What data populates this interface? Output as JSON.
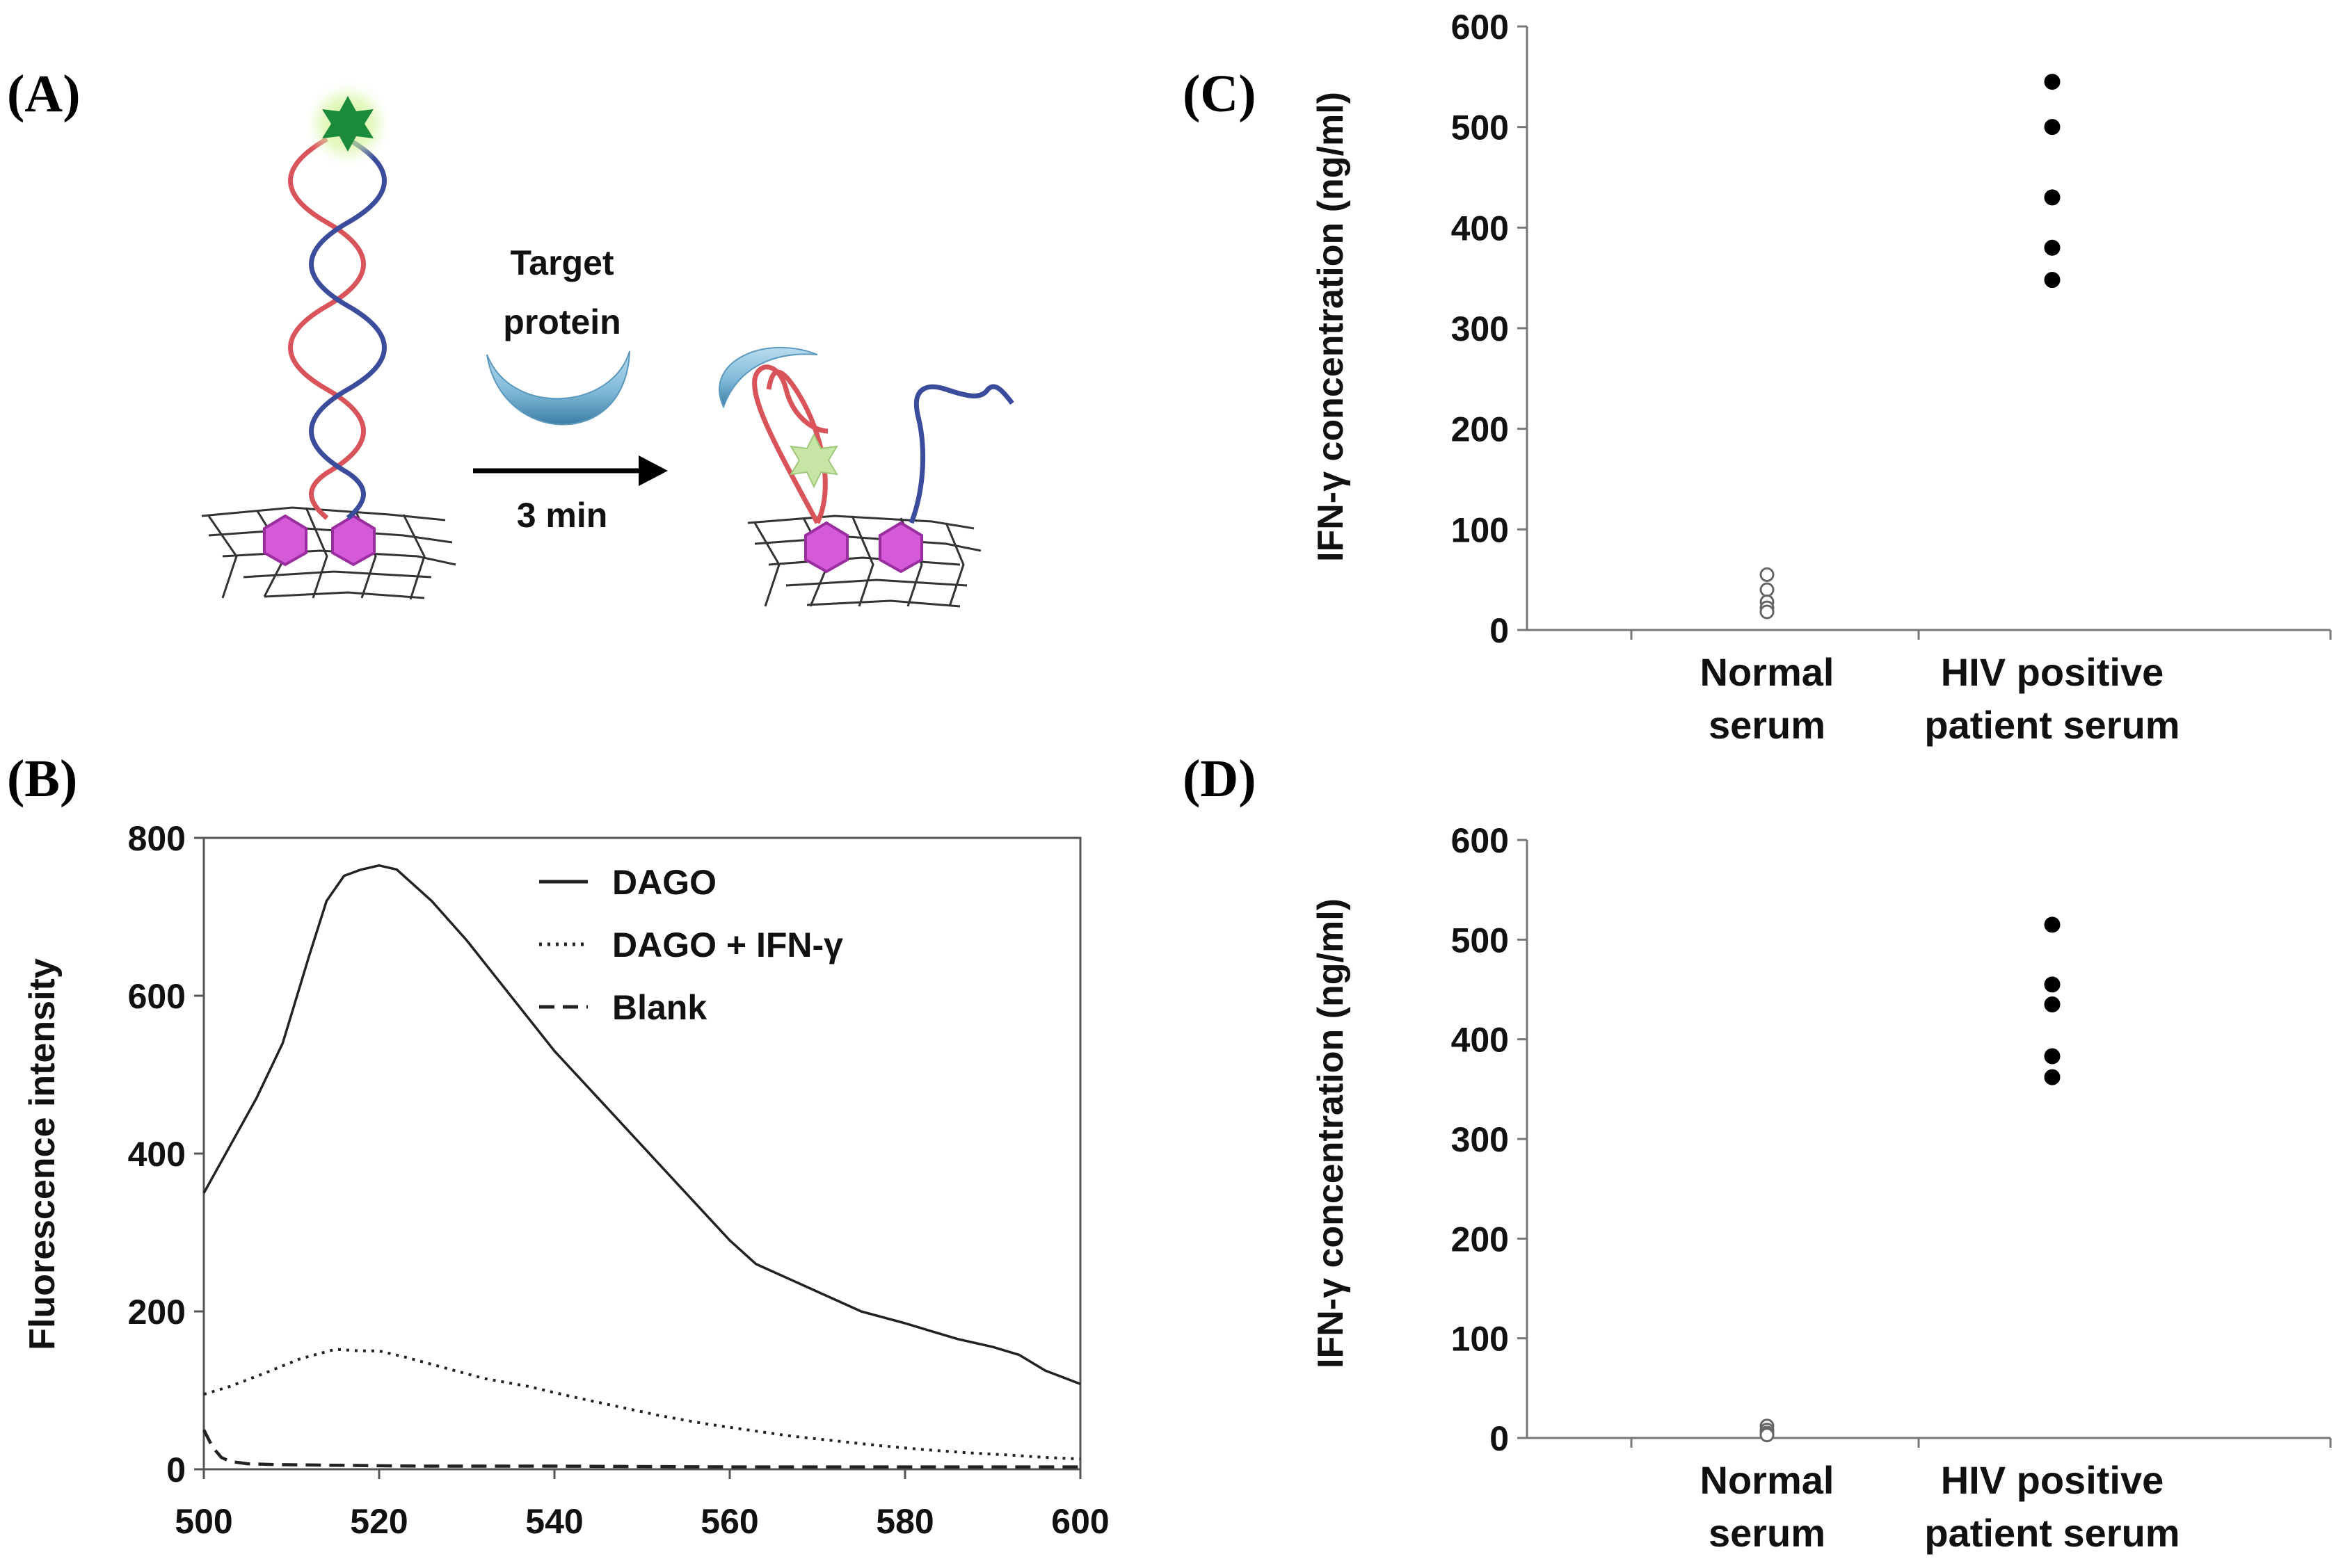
{
  "panels": {
    "a": {
      "label": "(A)",
      "arrow_label_top_line1": "Target",
      "arrow_label_top_line2": "protein",
      "arrow_label_bottom": "3 min"
    },
    "b": {
      "label": "(B)"
    },
    "c": {
      "label": "(C)"
    },
    "d": {
      "label": "(D)"
    }
  },
  "colors": {
    "red_strand": "#d9535a",
    "blue_strand": "#3a4c9b",
    "green_star": "#1b8a3a",
    "pale_star": "#c7e6a6",
    "hexagon": "#d55ad8",
    "protein": "#7fb9d8"
  },
  "chart_data": [
    {
      "id": "B",
      "type": "line",
      "title": "",
      "xlabel": "",
      "ylabel": "Fluorescence intensity",
      "xlim": [
        500,
        600
      ],
      "ylim": [
        0,
        800
      ],
      "xticks": [
        500,
        520,
        540,
        560,
        580,
        600
      ],
      "yticks": [
        0,
        200,
        400,
        600,
        800
      ],
      "legend_position": "top-right",
      "series": [
        {
          "name": "DAGO",
          "style": "solid",
          "x": [
            500,
            503,
            506,
            509,
            512,
            514,
            516,
            518,
            520,
            522,
            526,
            530,
            535,
            540,
            545,
            550,
            555,
            560,
            563,
            566,
            570,
            575,
            580,
            583,
            586,
            590,
            593,
            596,
            600
          ],
          "y": [
            350,
            410,
            470,
            540,
            650,
            720,
            752,
            760,
            765,
            760,
            720,
            670,
            600,
            530,
            470,
            410,
            350,
            290,
            260,
            245,
            225,
            200,
            185,
            175,
            165,
            155,
            145,
            125,
            108
          ]
        },
        {
          "name": "DAGO + IFN-γ",
          "style": "dotted",
          "x": [
            500,
            503,
            507,
            511,
            515,
            518,
            520,
            523,
            527,
            532,
            537,
            542,
            547,
            552,
            557,
            562,
            567,
            572,
            577,
            582,
            587,
            592,
            596,
            600
          ],
          "y": [
            95,
            105,
            122,
            140,
            152,
            150,
            150,
            142,
            130,
            115,
            105,
            92,
            80,
            68,
            58,
            50,
            42,
            36,
            30,
            25,
            21,
            18,
            15,
            13
          ]
        },
        {
          "name": "Blank",
          "style": "dashed",
          "x": [
            500,
            501,
            502,
            503,
            505,
            508,
            515,
            525,
            540,
            560,
            580,
            600
          ],
          "y": [
            50,
            28,
            15,
            10,
            7,
            6,
            5,
            4,
            4,
            3,
            3,
            3
          ]
        }
      ]
    },
    {
      "id": "C",
      "type": "scatter",
      "title": "",
      "xlabel": "",
      "ylabel": "IFN-γ concentration (ng/ml)",
      "ylim": [
        0,
        600
      ],
      "yticks": [
        0,
        100,
        200,
        300,
        400,
        500,
        600
      ],
      "categories": [
        "Normal serum",
        "HIV positive patient serum"
      ],
      "category_lines": [
        [
          "Normal",
          "serum"
        ],
        [
          "HIV positive",
          "patient serum"
        ]
      ],
      "series": [
        {
          "name": "Normal serum",
          "marker": "open",
          "category": 0,
          "values": [
            55,
            40,
            28,
            22,
            18
          ]
        },
        {
          "name": "HIV positive patient serum",
          "marker": "filled",
          "category": 1,
          "values": [
            545,
            500,
            430,
            380,
            348
          ]
        }
      ]
    },
    {
      "id": "D",
      "type": "scatter",
      "title": "",
      "xlabel": "",
      "ylabel": "IFN-γ concentration (ng/ml)",
      "ylim": [
        0,
        600
      ],
      "yticks": [
        0,
        100,
        200,
        300,
        400,
        500,
        600
      ],
      "categories": [
        "Normal serum",
        "HIV positive patient serum"
      ],
      "category_lines": [
        [
          "Normal",
          "serum"
        ],
        [
          "HIV positive",
          "patient serum"
        ]
      ],
      "series": [
        {
          "name": "Normal serum",
          "marker": "open",
          "category": 0,
          "values": [
            12,
            8,
            5,
            3
          ]
        },
        {
          "name": "HIV positive patient serum",
          "marker": "filled",
          "category": 1,
          "values": [
            515,
            455,
            435,
            383,
            362
          ]
        }
      ]
    }
  ]
}
